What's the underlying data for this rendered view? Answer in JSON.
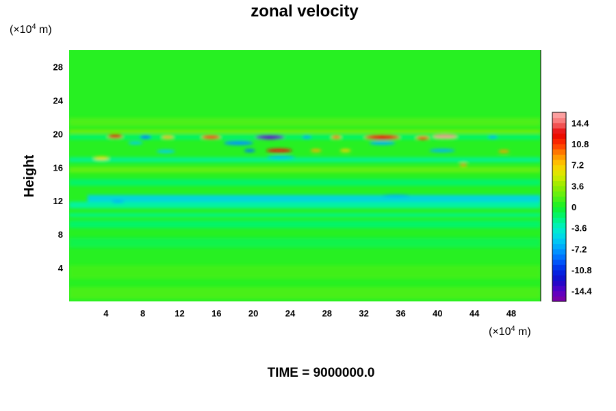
{
  "chart_data": {
    "type": "heatmap",
    "title": "zonal velocity",
    "ylabel": "Height",
    "xlabel": "",
    "y_unit_prefix": "(×10",
    "y_unit_exp": "4",
    "y_unit_suffix": " m)",
    "x_unit_prefix": "(×10",
    "x_unit_exp": "4",
    "x_unit_suffix": " m)",
    "xlim": [
      0,
      51.2
    ],
    "ylim": [
      0,
      30
    ],
    "x_ticks": [
      4,
      8,
      12,
      16,
      20,
      24,
      28,
      32,
      36,
      40,
      44,
      48
    ],
    "y_ticks": [
      4,
      8,
      12,
      16,
      20,
      24,
      28
    ],
    "colorbar": {
      "range": [
        -16.2,
        16.2
      ],
      "tick_values": [
        14.4,
        10.8,
        7.2,
        3.6,
        0,
        -3.6,
        -7.2,
        -10.8,
        -14.4
      ],
      "tick_labels": [
        "14.4",
        "10.8",
        "7.2",
        "3.6",
        "0",
        "-3.6",
        "-7.2",
        "-10.8",
        "-14.4"
      ]
    },
    "background_value": 0.5,
    "features": [
      {
        "type": "band",
        "y": 19.6,
        "x0": 0,
        "x1": 51.2,
        "thickness": 0.6,
        "value": -1.5
      },
      {
        "type": "band",
        "y": 16.9,
        "x0": 0,
        "x1": 51.2,
        "thickness": 0.6,
        "value": -2.4
      },
      {
        "type": "band",
        "y": 15.7,
        "x0": 0,
        "x1": 51.2,
        "thickness": 0.7,
        "value": 2.2
      },
      {
        "type": "band",
        "y": 14.2,
        "x0": 0,
        "x1": 51.2,
        "thickness": 0.8,
        "value": -1.6
      },
      {
        "type": "band",
        "y": 12.2,
        "x0": 2,
        "x1": 51.2,
        "thickness": 1.0,
        "value": -5.4
      },
      {
        "type": "band",
        "y": 11.5,
        "x0": 0,
        "x1": 51.2,
        "thickness": 0.8,
        "value": -3.0
      },
      {
        "type": "band",
        "y": 10.3,
        "x0": 0,
        "x1": 51.2,
        "thickness": 0.5,
        "value": -2.2
      },
      {
        "type": "band",
        "y": 9.2,
        "x0": 0,
        "x1": 51.2,
        "thickness": 0.9,
        "value": -1.6
      },
      {
        "type": "band",
        "y": 7.0,
        "x0": 0,
        "x1": 51.2,
        "thickness": 1.2,
        "value": -0.9
      },
      {
        "type": "band",
        "y": 3.5,
        "x0": 0,
        "x1": 51.2,
        "thickness": 1.6,
        "value": 1.2
      },
      {
        "type": "band",
        "y": 1.0,
        "x0": 0,
        "x1": 51.2,
        "thickness": 1.4,
        "value": 1.5
      },
      {
        "type": "band",
        "y": 21.4,
        "x0": 0,
        "x1": 51.2,
        "thickness": 1.0,
        "value": 1.6
      },
      {
        "type": "band",
        "y": 20.3,
        "x0": 0,
        "x1": 51.2,
        "thickness": 0.35,
        "value": 3.2
      },
      {
        "type": "spot",
        "x": 5.0,
        "y": 19.7,
        "w": 1.6,
        "h": 0.45,
        "value": 12.5
      },
      {
        "type": "spot",
        "x": 8.3,
        "y": 19.6,
        "w": 1.2,
        "h": 0.4,
        "value": -8.5
      },
      {
        "type": "spot",
        "x": 10.7,
        "y": 19.6,
        "w": 1.2,
        "h": 0.35,
        "value": 8.0
      },
      {
        "type": "spot",
        "x": 15.4,
        "y": 19.6,
        "w": 2.0,
        "h": 0.45,
        "value": 11.0
      },
      {
        "type": "spot",
        "x": 21.8,
        "y": 19.6,
        "w": 3.2,
        "h": 0.55,
        "value": -14.5
      },
      {
        "type": "spot",
        "x": 25.8,
        "y": 19.6,
        "w": 1.0,
        "h": 0.35,
        "value": -7.0
      },
      {
        "type": "spot",
        "x": 29.0,
        "y": 19.6,
        "w": 1.0,
        "h": 0.4,
        "value": 9.5
      },
      {
        "type": "spot",
        "x": 34.0,
        "y": 19.6,
        "w": 3.8,
        "h": 0.55,
        "value": 12.0
      },
      {
        "type": "spot",
        "x": 40.8,
        "y": 19.7,
        "w": 2.6,
        "h": 0.45,
        "value": 15.5
      },
      {
        "type": "spot",
        "x": 38.4,
        "y": 19.5,
        "w": 1.4,
        "h": 0.4,
        "value": 10.5
      },
      {
        "type": "spot",
        "x": 46.0,
        "y": 19.6,
        "w": 1.0,
        "h": 0.35,
        "value": -6.5
      },
      {
        "type": "spot",
        "x": 7.2,
        "y": 18.9,
        "w": 1.6,
        "h": 0.35,
        "value": -5.5
      },
      {
        "type": "spot",
        "x": 18.4,
        "y": 18.9,
        "w": 3.2,
        "h": 0.5,
        "value": -7.5
      },
      {
        "type": "spot",
        "x": 34.0,
        "y": 18.9,
        "w": 2.8,
        "h": 0.45,
        "value": -6.5
      },
      {
        "type": "spot",
        "x": 22.8,
        "y": 18.0,
        "w": 2.8,
        "h": 0.45,
        "value": 13.0
      },
      {
        "type": "spot",
        "x": 19.6,
        "y": 18.0,
        "w": 1.2,
        "h": 0.35,
        "value": -8.5
      },
      {
        "type": "spot",
        "x": 26.8,
        "y": 18.0,
        "w": 1.2,
        "h": 0.35,
        "value": 8.0
      },
      {
        "type": "spot",
        "x": 30.0,
        "y": 18.0,
        "w": 1.2,
        "h": 0.35,
        "value": 7.0
      },
      {
        "type": "spot",
        "x": 40.5,
        "y": 18.0,
        "w": 2.8,
        "h": 0.4,
        "value": -6.5
      },
      {
        "type": "spot",
        "x": 10.5,
        "y": 17.9,
        "w": 2.0,
        "h": 0.4,
        "value": -5.5
      },
      {
        "type": "spot",
        "x": 47.2,
        "y": 17.9,
        "w": 1.2,
        "h": 0.35,
        "value": 8.5
      },
      {
        "type": "spot",
        "x": 3.5,
        "y": 17.1,
        "w": 1.6,
        "h": 0.4,
        "value": 6.5
      },
      {
        "type": "spot",
        "x": 23.0,
        "y": 17.2,
        "w": 3.0,
        "h": 0.4,
        "value": -6.0
      },
      {
        "type": "spot",
        "x": 42.8,
        "y": 16.3,
        "w": 0.8,
        "h": 0.3,
        "value": 9.0
      },
      {
        "type": "spot",
        "x": 35.5,
        "y": 12.6,
        "w": 3.0,
        "h": 0.3,
        "value": -6.5
      },
      {
        "type": "spot",
        "x": 5.3,
        "y": 11.9,
        "w": 1.4,
        "h": 0.25,
        "value": -7.0
      }
    ]
  },
  "footer": {
    "time_label": "TIME = 9000000.0"
  }
}
